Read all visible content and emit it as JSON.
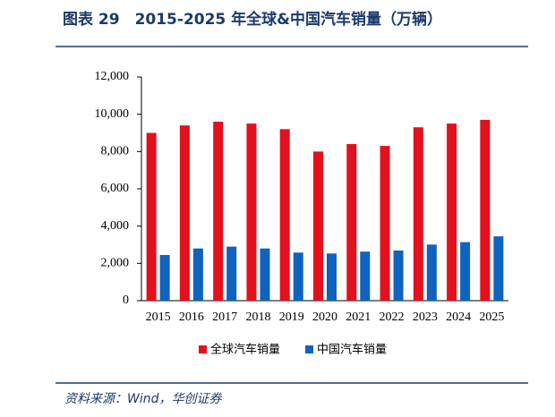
{
  "chart_data": {
    "type": "bar",
    "title": "图表 29　2015-2025 年全球&中国汽车销量（万辆）",
    "source": "资料来源：Wind，华创证券",
    "categories": [
      "2015",
      "2016",
      "2017",
      "2018",
      "2019",
      "2020",
      "2021",
      "2022",
      "2023",
      "2024",
      "2025"
    ],
    "series": [
      {
        "name": "全球汽车销量",
        "color": "#e3101d",
        "values": [
          9000,
          9400,
          9600,
          9500,
          9200,
          8000,
          8400,
          8300,
          9300,
          9500,
          9700
        ]
      },
      {
        "name": "中国汽车销量",
        "color": "#0f63be",
        "values": [
          2450,
          2800,
          2900,
          2800,
          2580,
          2530,
          2630,
          2690,
          3010,
          3140,
          3450
        ]
      }
    ],
    "ylim": [
      0,
      12000
    ],
    "yticks": [
      0,
      {
        "value": 2000,
        "label": "2,000"
      },
      {
        "value": 4000,
        "label": "4,000"
      },
      {
        "value": 6000,
        "label": "6,000"
      },
      {
        "value": 8000,
        "label": "8,000"
      },
      {
        "value": 10000,
        "label": "10,000"
      },
      {
        "value": 12000,
        "label": "12,000"
      }
    ],
    "legend": "bottom"
  }
}
